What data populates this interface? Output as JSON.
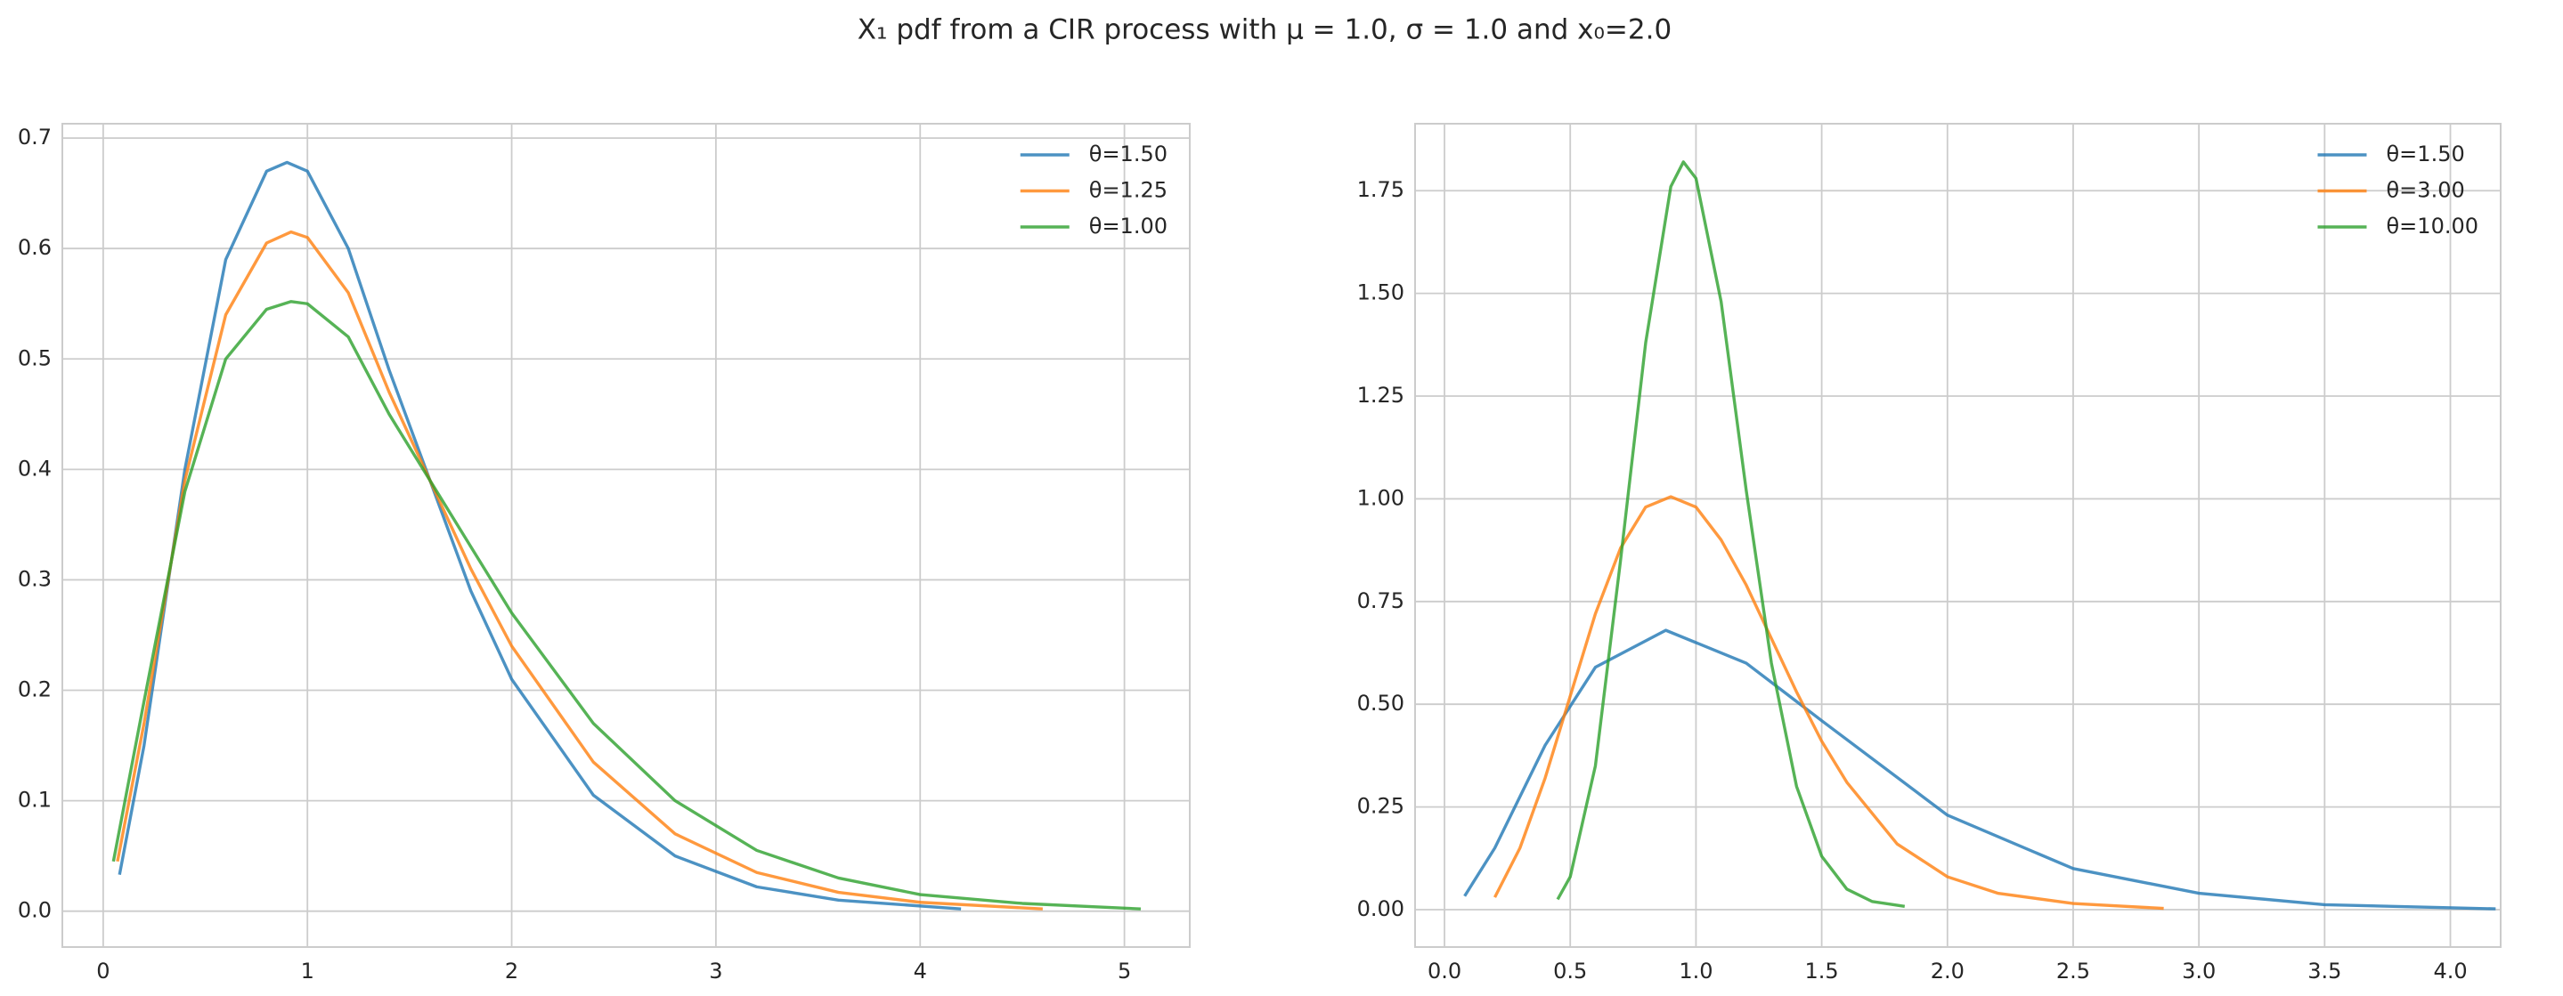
{
  "title": "X₁ pdf from a CIR process with μ = 1.0, σ = 1.0 and x₀=2.0",
  "chart_data": [
    {
      "type": "line",
      "grid": true,
      "legend": "upper right",
      "xlim": [
        -0.2,
        5.32
      ],
      "ylim": [
        -0.0325,
        0.713
      ],
      "xticks": [
        0,
        1,
        2,
        3,
        4,
        5
      ],
      "yticks": [
        {
          "value": 0,
          "label": "0.0"
        },
        0.1,
        0.2,
        0.3,
        0.4,
        0.5,
        0.6,
        0.7
      ],
      "series": [
        {
          "name": "θ=1.50",
          "color": "#1f77b4",
          "x": [
            0.08,
            0.2,
            0.4,
            0.6,
            0.8,
            0.9,
            1.0,
            1.2,
            1.4,
            1.6,
            1.8,
            2.0,
            2.4,
            2.8,
            3.2,
            3.6,
            4.2
          ],
          "values": [
            0.033,
            0.15,
            0.4,
            0.59,
            0.67,
            0.678,
            0.67,
            0.6,
            0.49,
            0.39,
            0.29,
            0.21,
            0.105,
            0.05,
            0.022,
            0.01,
            0.002
          ]
        },
        {
          "name": "θ=1.25",
          "color": "#ff7f0e",
          "x": [
            0.07,
            0.2,
            0.4,
            0.6,
            0.8,
            0.92,
            1.0,
            1.2,
            1.4,
            1.6,
            1.8,
            2.0,
            2.4,
            2.8,
            3.2,
            3.6,
            4.0,
            4.6
          ],
          "values": [
            0.045,
            0.17,
            0.39,
            0.54,
            0.605,
            0.615,
            0.61,
            0.56,
            0.47,
            0.39,
            0.31,
            0.24,
            0.135,
            0.07,
            0.035,
            0.017,
            0.008,
            0.002
          ]
        },
        {
          "name": "θ=1.00",
          "color": "#2ca02c",
          "x": [
            0.05,
            0.2,
            0.4,
            0.6,
            0.8,
            0.92,
            1.0,
            1.2,
            1.4,
            1.6,
            1.8,
            2.0,
            2.4,
            2.8,
            3.2,
            3.6,
            4.0,
            4.5,
            5.08
          ],
          "values": [
            0.045,
            0.19,
            0.38,
            0.5,
            0.545,
            0.552,
            0.55,
            0.52,
            0.45,
            0.39,
            0.33,
            0.27,
            0.17,
            0.1,
            0.055,
            0.03,
            0.015,
            0.007,
            0.002
          ]
        }
      ]
    },
    {
      "type": "line",
      "grid": true,
      "legend": "upper right",
      "xlim": [
        -0.117,
        4.2
      ],
      "ylim": [
        -0.091,
        1.913
      ],
      "xticks": [
        {
          "value": 0,
          "label": "0.0"
        },
        0.5,
        {
          "value": 1,
          "label": "1.0"
        },
        1.5,
        {
          "value": 2,
          "label": "2.0"
        },
        2.5,
        {
          "value": 3,
          "label": "3.0"
        },
        3.5,
        {
          "value": 4,
          "label": "4.0"
        }
      ],
      "yticks": [
        {
          "value": 0,
          "label": "0.00"
        },
        0.25,
        {
          "value": 0.5,
          "label": "0.50"
        },
        0.75,
        {
          "value": 1,
          "label": "1.00"
        },
        1.25,
        {
          "value": 1.5,
          "label": "1.50"
        },
        1.75
      ],
      "series": [
        {
          "name": "θ=1.50",
          "color": "#1f77b4",
          "x": [
            0.08,
            0.2,
            0.4,
            0.6,
            0.88,
            1.2,
            1.5,
            2.0,
            2.5,
            3.0,
            3.5,
            4.18
          ],
          "values": [
            0.033,
            0.15,
            0.4,
            0.59,
            0.68,
            0.6,
            0.46,
            0.23,
            0.1,
            0.04,
            0.012,
            0.002
          ]
        },
        {
          "name": "θ=3.00",
          "color": "#ff7f0e",
          "x": [
            0.2,
            0.3,
            0.4,
            0.5,
            0.6,
            0.7,
            0.8,
            0.9,
            1.0,
            1.1,
            1.2,
            1.3,
            1.4,
            1.5,
            1.6,
            1.8,
            2.0,
            2.2,
            2.5,
            2.86
          ],
          "values": [
            0.03,
            0.15,
            0.32,
            0.52,
            0.72,
            0.88,
            0.98,
            1.005,
            0.98,
            0.9,
            0.79,
            0.66,
            0.53,
            0.41,
            0.31,
            0.16,
            0.08,
            0.04,
            0.015,
            0.003
          ]
        },
        {
          "name": "θ=10.00",
          "color": "#2ca02c",
          "x": [
            0.45,
            0.5,
            0.6,
            0.7,
            0.8,
            0.9,
            0.95,
            1.0,
            1.1,
            1.2,
            1.3,
            1.4,
            1.5,
            1.6,
            1.7,
            1.83
          ],
          "values": [
            0.025,
            0.08,
            0.35,
            0.85,
            1.38,
            1.76,
            1.82,
            1.78,
            1.48,
            1.02,
            0.6,
            0.3,
            0.13,
            0.05,
            0.02,
            0.008
          ]
        }
      ]
    }
  ]
}
